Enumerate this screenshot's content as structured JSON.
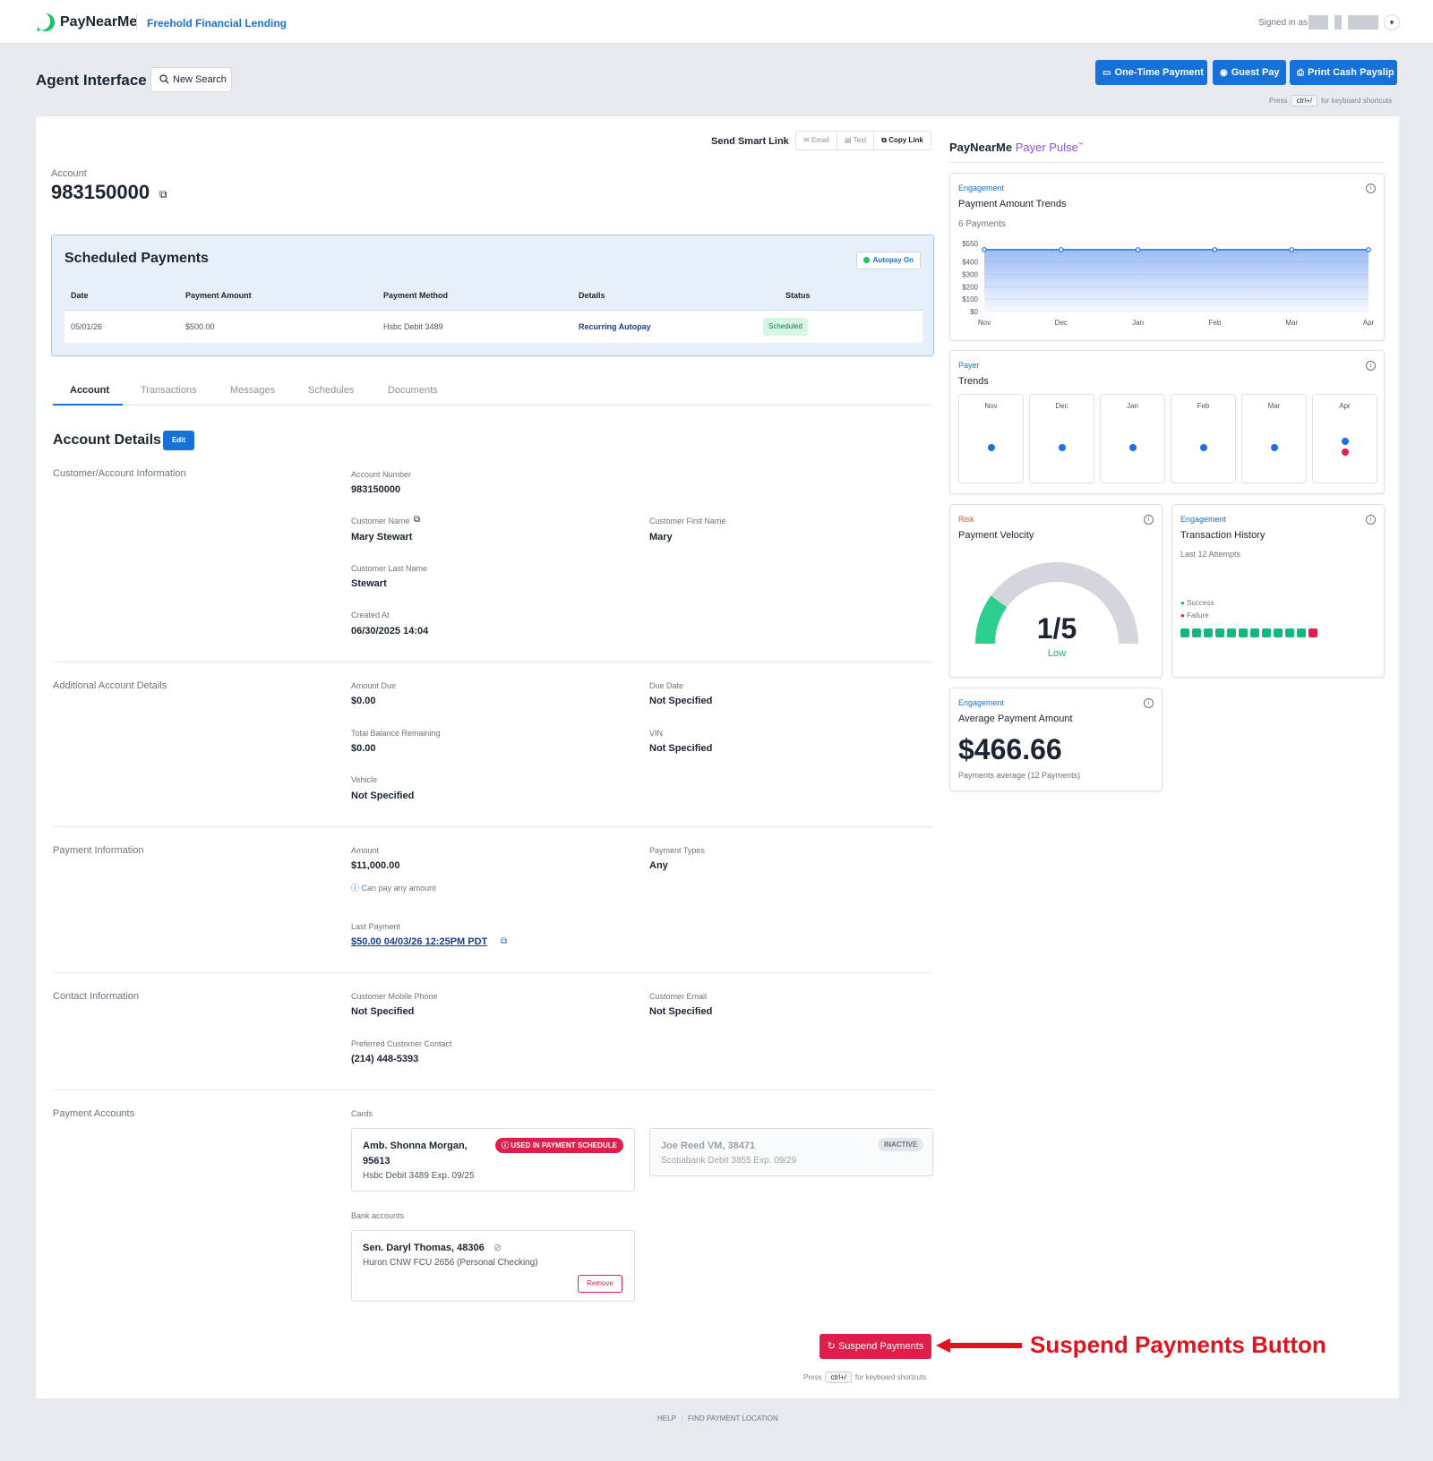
{
  "header": {
    "brand": "PayNearMe",
    "lender": "Freehold Financial Lending",
    "signed_in": "Signed in as"
  },
  "toolbar": {
    "title": "Agent Interface",
    "new_search": "New Search",
    "one_time_payment": "One-Time Payment",
    "guest_pay": "Guest Pay",
    "print_cash_payslip": "Print Cash Payslip",
    "shortcut_press": "Press",
    "shortcut_key": "ctrl+/",
    "shortcut_suffix": "for keyboard shortcuts"
  },
  "smart_link": {
    "label": "Send Smart Link",
    "email": "Email",
    "text": "Text",
    "copy": "Copy Link"
  },
  "account": {
    "label": "Account",
    "number": "983150000"
  },
  "scheduled": {
    "title": "Scheduled Payments",
    "autopay": "Autopay On",
    "headers": [
      "Date",
      "Payment Amount",
      "Payment Method",
      "Details",
      "Status"
    ],
    "row": {
      "date": "05/01/26",
      "amount": "$500.00",
      "method": "Hsbc Debit 3489",
      "details": "Recurring Autopay",
      "status": "Scheduled"
    }
  },
  "tabs": [
    "Account",
    "Transactions",
    "Messages",
    "Schedules",
    "Documents"
  ],
  "details": {
    "title": "Account Details",
    "edit": "Edit",
    "sections": {
      "customer": "Customer/Account Information",
      "additional": "Additional Account Details",
      "payment": "Payment Information",
      "contact": "Contact Information",
      "accounts": "Payment Accounts"
    },
    "fields": {
      "account_number_l": "Account Number",
      "account_number_v": "983150000",
      "customer_name_l": "Customer Name",
      "customer_name_v": "Mary Stewart",
      "first_name_l": "Customer First Name",
      "first_name_v": "Mary",
      "last_name_l": "Customer Last Name",
      "last_name_v": "Stewart",
      "created_l": "Created At",
      "created_v": "06/30/2025 14:04",
      "amount_due_l": "Amount Due",
      "amount_due_v": "$0.00",
      "due_date_l": "Due Date",
      "due_date_v": "Not Specified",
      "balance_l": "Total Balance Remaining",
      "balance_v": "$0.00",
      "vin_l": "VIN",
      "vin_v": "Not Specified",
      "vehicle_l": "Vehicle",
      "vehicle_v": "Not Specified",
      "amount_l": "Amount",
      "amount_v": "$11,000.00",
      "any_amount": "Can pay any amount",
      "types_l": "Payment Types",
      "types_v": "Any",
      "last_payment_l": "Last Payment",
      "last_payment_v": "$50.00 04/03/26 12:25PM PDT",
      "mobile_l": "Customer Mobile Phone",
      "mobile_v": "Not Specified",
      "email_l": "Customer Email",
      "email_v": "Not Specified",
      "preferred_l": "Preferred Customer Contact",
      "preferred_v": "(214) 448-5393"
    },
    "cards_label": "Cards",
    "cards": [
      {
        "name1": "Amb. Shonna Morgan,",
        "name2": "95613",
        "desc": "Hsbc Debit 3489 Exp. 09/25",
        "badge": "USED IN PAYMENT SCHEDULE"
      },
      {
        "name1": "Joe Reed VM, 38471",
        "desc": "Scotiabank Debit 3855 Exp. 09/29",
        "badge": "INACTIVE"
      }
    ],
    "bank_label": "Bank accounts",
    "bank": {
      "name": "Sen. Daryl Thomas, 48306",
      "desc": "Huron CNW FCU 2656 (Personal Checking)",
      "remove": "Remove"
    },
    "suspend": "Suspend Payments",
    "annotation": "Suspend Payments Button"
  },
  "pulse": {
    "brand": "PayNearMe",
    "product": "Payer Pulse",
    "tm": "™",
    "trends": {
      "category": "Engagement",
      "title": "Payment Amount Trends",
      "subtitle": "6 Payments"
    },
    "payer": {
      "category": "Payer",
      "title": "Trends",
      "months": [
        "Nov",
        "Dec",
        "Jan",
        "Feb",
        "Mar",
        "Apr"
      ]
    },
    "velocity": {
      "category": "Risk",
      "title": "Payment Velocity",
      "score": "1/5",
      "level": "Low",
      "fraction": 0.2
    },
    "history": {
      "category": "Engagement",
      "title": "Transaction History",
      "subtitle": "Last 12 Attempts",
      "success": "Success",
      "failure": "Failure",
      "attempts": [
        "s",
        "s",
        "s",
        "s",
        "s",
        "s",
        "s",
        "s",
        "s",
        "s",
        "s",
        "f"
      ]
    },
    "average": {
      "category": "Engagement",
      "title": "Average Payment Amount",
      "value": "$466.66",
      "subtitle": "Payments average (12 Payments)"
    }
  },
  "chart_data": {
    "type": "area",
    "categories": [
      "Nov",
      "Dec",
      "Jan",
      "Feb",
      "Mar",
      "Apr"
    ],
    "values": [
      500,
      500,
      500,
      500,
      500,
      500
    ],
    "y_ticks": [
      "$550",
      "$400",
      "$300",
      "$200",
      "$100",
      "$0"
    ],
    "ylim": [
      0,
      550
    ]
  },
  "footer": {
    "help": "HELP",
    "find": "FIND PAYMENT LOCATION"
  },
  "colors": {
    "primary": "#1671d8",
    "danger": "#e01d4b",
    "success": "#14b87a",
    "pulse": "#8d4fe0"
  }
}
